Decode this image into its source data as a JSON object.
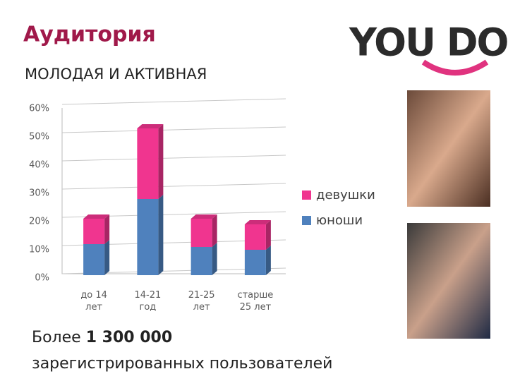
{
  "slide": {
    "title": "Аудитория",
    "subtitle": "МОЛОДАЯ И АКТИВНАЯ",
    "logo": "YOU DO",
    "footer": {
      "prefix": "Более",
      "number": "1 300 000",
      "suffix": "зарегистрированных пользователей"
    }
  },
  "chart_data": {
    "type": "stacked_bar",
    "categories": [
      "до 14 лет",
      "14-21 год",
      "21-25 лет",
      "старше 25 лет"
    ],
    "series": [
      {
        "name": "юноши",
        "color": "#4f81bd",
        "values": [
          11,
          27,
          10,
          9
        ]
      },
      {
        "name": "девушки",
        "color": "#f0358f",
        "values": [
          9,
          25,
          10,
          9
        ]
      }
    ],
    "ylim": [
      0,
      60
    ],
    "yticks": [
      {
        "value": 0,
        "label": "0%"
      },
      {
        "value": 10,
        "label": "10%"
      },
      {
        "value": 20,
        "label": "20%"
      },
      {
        "value": 30,
        "label": "30%"
      },
      {
        "value": 40,
        "label": "40%"
      },
      {
        "value": 50,
        "label": "50%"
      },
      {
        "value": 60,
        "label": "60%"
      }
    ],
    "grid": true,
    "legend": "right"
  }
}
